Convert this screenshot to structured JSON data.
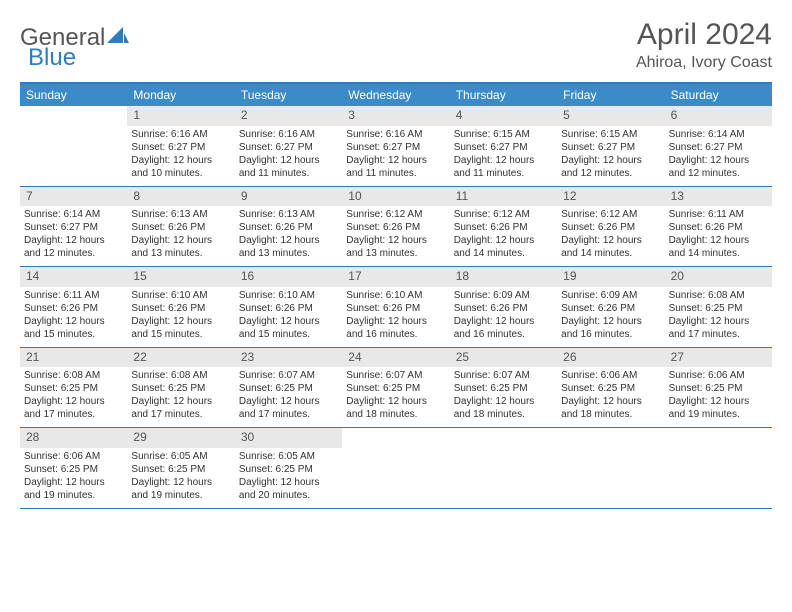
{
  "logo": {
    "text1": "General",
    "text2": "Blue"
  },
  "title": "April 2024",
  "location": "Ahiroa, Ivory Coast",
  "header_bg": "#3b8bc9",
  "border_color": "#2d7cc0",
  "daynum_bg": "#e8e8e8",
  "days": [
    "Sunday",
    "Monday",
    "Tuesday",
    "Wednesday",
    "Thursday",
    "Friday",
    "Saturday"
  ],
  "weeks": [
    [
      {
        "n": "",
        "sr": "",
        "ss": "",
        "dl": ""
      },
      {
        "n": "1",
        "sr": "Sunrise: 6:16 AM",
        "ss": "Sunset: 6:27 PM",
        "dl": "Daylight: 12 hours and 10 minutes."
      },
      {
        "n": "2",
        "sr": "Sunrise: 6:16 AM",
        "ss": "Sunset: 6:27 PM",
        "dl": "Daylight: 12 hours and 11 minutes."
      },
      {
        "n": "3",
        "sr": "Sunrise: 6:16 AM",
        "ss": "Sunset: 6:27 PM",
        "dl": "Daylight: 12 hours and 11 minutes."
      },
      {
        "n": "4",
        "sr": "Sunrise: 6:15 AM",
        "ss": "Sunset: 6:27 PM",
        "dl": "Daylight: 12 hours and 11 minutes."
      },
      {
        "n": "5",
        "sr": "Sunrise: 6:15 AM",
        "ss": "Sunset: 6:27 PM",
        "dl": "Daylight: 12 hours and 12 minutes."
      },
      {
        "n": "6",
        "sr": "Sunrise: 6:14 AM",
        "ss": "Sunset: 6:27 PM",
        "dl": "Daylight: 12 hours and 12 minutes."
      }
    ],
    [
      {
        "n": "7",
        "sr": "Sunrise: 6:14 AM",
        "ss": "Sunset: 6:27 PM",
        "dl": "Daylight: 12 hours and 12 minutes."
      },
      {
        "n": "8",
        "sr": "Sunrise: 6:13 AM",
        "ss": "Sunset: 6:26 PM",
        "dl": "Daylight: 12 hours and 13 minutes."
      },
      {
        "n": "9",
        "sr": "Sunrise: 6:13 AM",
        "ss": "Sunset: 6:26 PM",
        "dl": "Daylight: 12 hours and 13 minutes."
      },
      {
        "n": "10",
        "sr": "Sunrise: 6:12 AM",
        "ss": "Sunset: 6:26 PM",
        "dl": "Daylight: 12 hours and 13 minutes."
      },
      {
        "n": "11",
        "sr": "Sunrise: 6:12 AM",
        "ss": "Sunset: 6:26 PM",
        "dl": "Daylight: 12 hours and 14 minutes."
      },
      {
        "n": "12",
        "sr": "Sunrise: 6:12 AM",
        "ss": "Sunset: 6:26 PM",
        "dl": "Daylight: 12 hours and 14 minutes."
      },
      {
        "n": "13",
        "sr": "Sunrise: 6:11 AM",
        "ss": "Sunset: 6:26 PM",
        "dl": "Daylight: 12 hours and 14 minutes."
      }
    ],
    [
      {
        "n": "14",
        "sr": "Sunrise: 6:11 AM",
        "ss": "Sunset: 6:26 PM",
        "dl": "Daylight: 12 hours and 15 minutes."
      },
      {
        "n": "15",
        "sr": "Sunrise: 6:10 AM",
        "ss": "Sunset: 6:26 PM",
        "dl": "Daylight: 12 hours and 15 minutes."
      },
      {
        "n": "16",
        "sr": "Sunrise: 6:10 AM",
        "ss": "Sunset: 6:26 PM",
        "dl": "Daylight: 12 hours and 15 minutes."
      },
      {
        "n": "17",
        "sr": "Sunrise: 6:10 AM",
        "ss": "Sunset: 6:26 PM",
        "dl": "Daylight: 12 hours and 16 minutes."
      },
      {
        "n": "18",
        "sr": "Sunrise: 6:09 AM",
        "ss": "Sunset: 6:26 PM",
        "dl": "Daylight: 12 hours and 16 minutes."
      },
      {
        "n": "19",
        "sr": "Sunrise: 6:09 AM",
        "ss": "Sunset: 6:26 PM",
        "dl": "Daylight: 12 hours and 16 minutes."
      },
      {
        "n": "20",
        "sr": "Sunrise: 6:08 AM",
        "ss": "Sunset: 6:25 PM",
        "dl": "Daylight: 12 hours and 17 minutes."
      }
    ],
    [
      {
        "n": "21",
        "sr": "Sunrise: 6:08 AM",
        "ss": "Sunset: 6:25 PM",
        "dl": "Daylight: 12 hours and 17 minutes."
      },
      {
        "n": "22",
        "sr": "Sunrise: 6:08 AM",
        "ss": "Sunset: 6:25 PM",
        "dl": "Daylight: 12 hours and 17 minutes."
      },
      {
        "n": "23",
        "sr": "Sunrise: 6:07 AM",
        "ss": "Sunset: 6:25 PM",
        "dl": "Daylight: 12 hours and 17 minutes."
      },
      {
        "n": "24",
        "sr": "Sunrise: 6:07 AM",
        "ss": "Sunset: 6:25 PM",
        "dl": "Daylight: 12 hours and 18 minutes."
      },
      {
        "n": "25",
        "sr": "Sunrise: 6:07 AM",
        "ss": "Sunset: 6:25 PM",
        "dl": "Daylight: 12 hours and 18 minutes."
      },
      {
        "n": "26",
        "sr": "Sunrise: 6:06 AM",
        "ss": "Sunset: 6:25 PM",
        "dl": "Daylight: 12 hours and 18 minutes."
      },
      {
        "n": "27",
        "sr": "Sunrise: 6:06 AM",
        "ss": "Sunset: 6:25 PM",
        "dl": "Daylight: 12 hours and 19 minutes."
      }
    ],
    [
      {
        "n": "28",
        "sr": "Sunrise: 6:06 AM",
        "ss": "Sunset: 6:25 PM",
        "dl": "Daylight: 12 hours and 19 minutes."
      },
      {
        "n": "29",
        "sr": "Sunrise: 6:05 AM",
        "ss": "Sunset: 6:25 PM",
        "dl": "Daylight: 12 hours and 19 minutes."
      },
      {
        "n": "30",
        "sr": "Sunrise: 6:05 AM",
        "ss": "Sunset: 6:25 PM",
        "dl": "Daylight: 12 hours and 20 minutes."
      },
      {
        "n": "",
        "sr": "",
        "ss": "",
        "dl": ""
      },
      {
        "n": "",
        "sr": "",
        "ss": "",
        "dl": ""
      },
      {
        "n": "",
        "sr": "",
        "ss": "",
        "dl": ""
      },
      {
        "n": "",
        "sr": "",
        "ss": "",
        "dl": ""
      }
    ]
  ]
}
